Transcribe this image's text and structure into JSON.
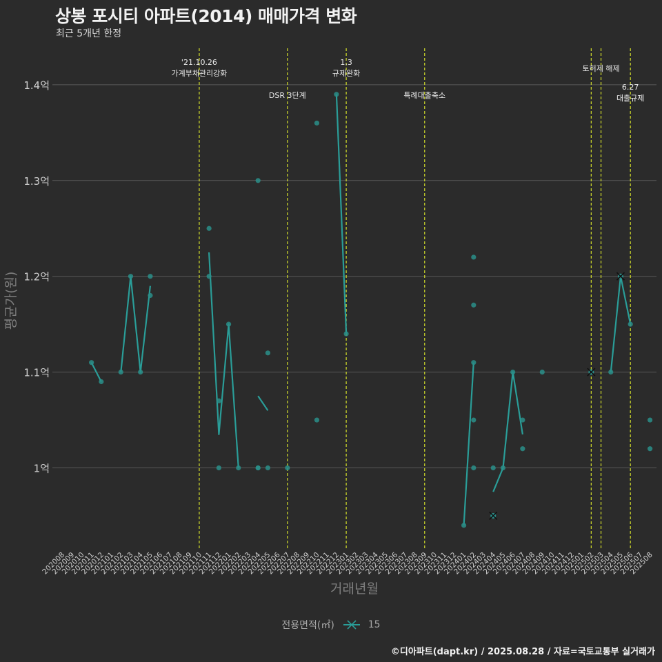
{
  "title": "상봉 포시티 아파트(2014) 매매가격 변화",
  "subtitle": "최근 5개년 한정",
  "caption": "©디아파트(dapt.kr) / 2025.08.28 / 자료=국토교통부 실거래가",
  "legend": {
    "title": "전용면적(㎡)",
    "entry": "15"
  },
  "colors": {
    "line": "#2a9d98",
    "point": "#2a8f8a",
    "vline": "#d4e02a",
    "grid": "#595959"
  },
  "chart_data": {
    "type": "line",
    "title": "상봉 포시티 아파트(2014) 매매가격 변화",
    "xlabel": "거래년월",
    "ylabel": "평균가(원)",
    "x_categories": [
      "202008",
      "202009",
      "202010",
      "202011",
      "202012",
      "202101",
      "202102",
      "202103",
      "202104",
      "202105",
      "202106",
      "202107",
      "202108",
      "202109",
      "202110",
      "202111",
      "202112",
      "202201",
      "202202",
      "202203",
      "202204",
      "202205",
      "202206",
      "202207",
      "202208",
      "202209",
      "202210",
      "202211",
      "202212",
      "202301",
      "202302",
      "202303",
      "202304",
      "202305",
      "202306",
      "202307",
      "202308",
      "202309",
      "202310",
      "202311",
      "202312",
      "202401",
      "202402",
      "202403",
      "202404",
      "202405",
      "202406",
      "202407",
      "202408",
      "202409",
      "202410",
      "202411",
      "202412",
      "202501",
      "202502",
      "202503",
      "202504",
      "202505",
      "202506",
      "202507",
      "202508"
    ],
    "y_ticks": [
      {
        "value": 1.0,
        "label": "1억"
      },
      {
        "value": 1.1,
        "label": "1.1억"
      },
      {
        "value": 1.2,
        "label": "1.2억"
      },
      {
        "value": 1.3,
        "label": "1.3억"
      },
      {
        "value": 1.4,
        "label": "1.4억"
      }
    ],
    "ylim": [
      0.92,
      1.44
    ],
    "series_name": "15",
    "points": [
      {
        "x": "202011",
        "y": 1.11
      },
      {
        "x": "202012",
        "y": 1.09
      },
      {
        "x": "202102",
        "y": 1.1
      },
      {
        "x": "202103",
        "y": 1.2
      },
      {
        "x": "202104",
        "y": 1.1
      },
      {
        "x": "202105",
        "y": 1.2
      },
      {
        "x": "202105",
        "y": 1.18
      },
      {
        "x": "202111",
        "y": 1.25
      },
      {
        "x": "202111",
        "y": 1.2
      },
      {
        "x": "202112",
        "y": 1.07
      },
      {
        "x": "202112",
        "y": 1.0
      },
      {
        "x": "202201",
        "y": 1.15
      },
      {
        "x": "202202",
        "y": 1.0
      },
      {
        "x": "202204",
        "y": 1.3
      },
      {
        "x": "202204",
        "y": 1.0
      },
      {
        "x": "202204",
        "y": 1.0
      },
      {
        "x": "202205",
        "y": 1.12
      },
      {
        "x": "202205",
        "y": 1.0
      },
      {
        "x": "202207",
        "y": 1.0
      },
      {
        "x": "202210",
        "y": 1.36
      },
      {
        "x": "202210",
        "y": 1.05
      },
      {
        "x": "202212",
        "y": 1.39
      },
      {
        "x": "202301",
        "y": 1.14
      },
      {
        "x": "202401",
        "y": 0.94
      },
      {
        "x": "202402",
        "y": 1.22
      },
      {
        "x": "202402",
        "y": 1.17
      },
      {
        "x": "202402",
        "y": 1.11
      },
      {
        "x": "202402",
        "y": 1.05
      },
      {
        "x": "202402",
        "y": 1.0
      },
      {
        "x": "202404",
        "y": 1.0
      },
      {
        "x": "202405",
        "y": 1.0
      },
      {
        "x": "202406",
        "y": 1.1
      },
      {
        "x": "202407",
        "y": 1.05
      },
      {
        "x": "202407",
        "y": 1.02
      },
      {
        "x": "202409",
        "y": 1.1
      },
      {
        "x": "202504",
        "y": 1.1
      },
      {
        "x": "202506",
        "y": 1.15
      },
      {
        "x": "202508",
        "y": 1.05
      },
      {
        "x": "202508",
        "y": 1.02
      }
    ],
    "markers_x": [
      {
        "x": "202404",
        "y": 0.95
      },
      {
        "x": "202502",
        "y": 1.1
      },
      {
        "x": "202505",
        "y": 1.2
      }
    ],
    "line_segments": [
      [
        {
          "x": "202011",
          "y": 1.11
        },
        {
          "x": "202012",
          "y": 1.09
        }
      ],
      [
        {
          "x": "202102",
          "y": 1.1
        },
        {
          "x": "202103",
          "y": 1.2
        },
        {
          "x": "202104",
          "y": 1.1
        },
        {
          "x": "202105",
          "y": 1.19
        }
      ],
      [
        {
          "x": "202111",
          "y": 1.225
        },
        {
          "x": "202112",
          "y": 1.035
        },
        {
          "x": "202201",
          "y": 1.15
        },
        {
          "x": "202202",
          "y": 1.0
        }
      ],
      [
        {
          "x": "202204",
          "y": 1.075
        },
        {
          "x": "202205",
          "y": 1.06
        }
      ],
      [
        {
          "x": "202212",
          "y": 1.39
        },
        {
          "x": "202301",
          "y": 1.14
        }
      ],
      [
        {
          "x": "202401",
          "y": 0.94
        },
        {
          "x": "202402",
          "y": 1.11
        }
      ],
      [
        {
          "x": "202404",
          "y": 0.975
        },
        {
          "x": "202405",
          "y": 1.0
        },
        {
          "x": "202406",
          "y": 1.1
        },
        {
          "x": "202407",
          "y": 1.035
        }
      ],
      [
        {
          "x": "202504",
          "y": 1.1
        },
        {
          "x": "202505",
          "y": 1.2
        },
        {
          "x": "202506",
          "y": 1.15
        }
      ]
    ],
    "events": [
      {
        "x": "202110",
        "lines": [
          "'21.10.26",
          "가계부채관리강화"
        ],
        "row": 1
      },
      {
        "x": "202207",
        "lines": [
          "DSR 3단계"
        ],
        "row": 3
      },
      {
        "x": "202301",
        "lines": [
          "1.3",
          "규제완화"
        ],
        "row": 1
      },
      {
        "x": "202309",
        "lines": [
          "특례대출축소"
        ],
        "row": 3
      },
      {
        "x": "202502",
        "lines": [],
        "row": 0
      },
      {
        "x": "202503",
        "lines": [
          "토허제 해제"
        ],
        "row": 2
      },
      {
        "x": "202506",
        "lines": [
          "6.27",
          "대출규제"
        ],
        "row": 3
      }
    ]
  }
}
